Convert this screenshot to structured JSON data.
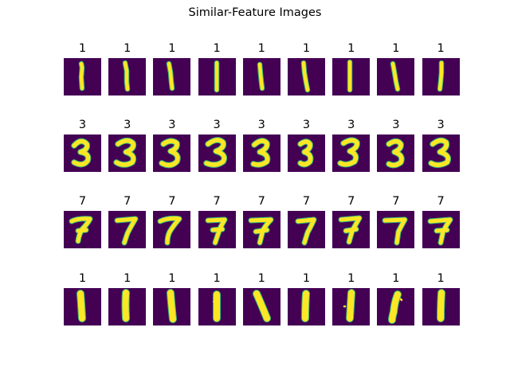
{
  "title": "Similar-Feature Images",
  "colors": {
    "background": "#440154",
    "stroke": "#fde725",
    "edge": "#35b779"
  },
  "rows": [
    {
      "labels": [
        "1",
        "1",
        "1",
        "1",
        "1",
        "1",
        "1",
        "1",
        "1"
      ],
      "digit": "1",
      "style": "thin"
    },
    {
      "labels": [
        "3",
        "3",
        "3",
        "3",
        "3",
        "3",
        "3",
        "3",
        "3"
      ],
      "digit": "3",
      "style": "normal"
    },
    {
      "labels": [
        "7",
        "7",
        "7",
        "7",
        "7",
        "7",
        "7",
        "7",
        "7"
      ],
      "digit": "7",
      "style": "normal"
    },
    {
      "labels": [
        "1",
        "1",
        "1",
        "1",
        "1",
        "1",
        "1",
        "1",
        "1"
      ],
      "digit": "1",
      "style": "thick"
    }
  ]
}
